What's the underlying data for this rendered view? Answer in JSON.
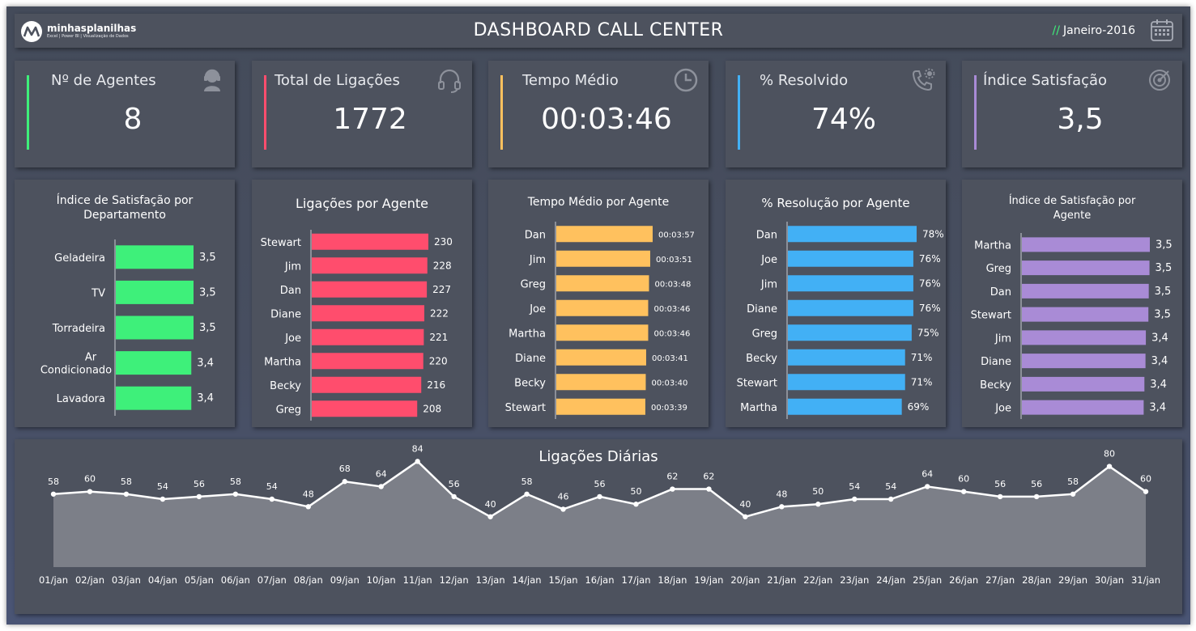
{
  "header": {
    "logo_name": "minhasplanilhas",
    "logo_tagline": "Excel | Power BI | Visualização de Dados",
    "title": "DASHBOARD CALL CENTER",
    "period_prefix": "//",
    "period": "Janeiro-2016",
    "calendar_icon": "calendar-icon"
  },
  "kpis": [
    {
      "label": "Nº de Agentes",
      "value": "8",
      "color": "#3ef07a",
      "icon": "headset-agent-icon"
    },
    {
      "label": "Total de Ligações",
      "value": "1772",
      "color": "#ff4d6d",
      "icon": "headphones-icon"
    },
    {
      "label": "Tempo Médio",
      "value": "00:03:46",
      "color": "#ffc15e",
      "icon": "clock-icon"
    },
    {
      "label": "% Resolvido",
      "value": "74%",
      "color": "#42b0f5",
      "icon": "phone-settings-icon"
    },
    {
      "label": "Índice Satisfação",
      "value": "3,5",
      "color": "#a98bd6",
      "icon": "target-icon"
    }
  ],
  "colors": {
    "green": "#3ef07a",
    "pink": "#ff4d6d",
    "orange": "#ffc15e",
    "blue": "#42b0f5",
    "purple": "#a98bd6",
    "panel": "#4d525e",
    "area_fill": "#7c7f88"
  },
  "chart_data": [
    {
      "type": "bar",
      "title": "Índice de Satisfação por Departamento",
      "categories": [
        "Geladeira",
        "TV",
        "Torradeira",
        "Ar Condicionado",
        "Lavadora"
      ],
      "values": [
        3.5,
        3.5,
        3.5,
        3.4,
        3.4
      ],
      "labels": [
        "3,5",
        "3,5",
        "3,5",
        "3,4",
        "3,4"
      ],
      "orientation": "horizontal",
      "color": "#3ef07a"
    },
    {
      "type": "bar",
      "title": "Ligações por Agente",
      "categories": [
        "Stewart",
        "Jim",
        "Dan",
        "Diane",
        "Joe",
        "Martha",
        "Becky",
        "Greg"
      ],
      "values": [
        230,
        228,
        227,
        222,
        221,
        220,
        216,
        208
      ],
      "labels": [
        "230",
        "228",
        "227",
        "222",
        "221",
        "220",
        "216",
        "208"
      ],
      "orientation": "horizontal",
      "color": "#ff4d6d"
    },
    {
      "type": "bar",
      "title": "Tempo Médio por Agente",
      "categories": [
        "Dan",
        "Jim",
        "Greg",
        "Joe",
        "Martha",
        "Diane",
        "Becky",
        "Stewart"
      ],
      "values": [
        237,
        231,
        228,
        226,
        226,
        221,
        220,
        219
      ],
      "labels": [
        "00:03:57",
        "00:03:51",
        "00:03:48",
        "00:03:46",
        "00:03:46",
        "00:03:41",
        "00:03:40",
        "00:03:39"
      ],
      "orientation": "horizontal",
      "color": "#ffc15e"
    },
    {
      "type": "bar",
      "title": "% Resolução por Agente",
      "categories": [
        "Dan",
        "Joe",
        "Jim",
        "Diane",
        "Greg",
        "Becky",
        "Stewart",
        "Martha"
      ],
      "values": [
        78,
        76,
        76,
        76,
        75,
        71,
        71,
        69
      ],
      "labels": [
        "78%",
        "76%",
        "76%",
        "76%",
        "75%",
        "71%",
        "71%",
        "69%"
      ],
      "orientation": "horizontal",
      "color": "#42b0f5"
    },
    {
      "type": "bar",
      "title": "Índice de Satisfação por Agente",
      "categories": [
        "Martha",
        "Greg",
        "Dan",
        "Stewart",
        "Jim",
        "Diane",
        "Becky",
        "Joe"
      ],
      "values": [
        3.53,
        3.52,
        3.5,
        3.49,
        3.42,
        3.41,
        3.38,
        3.36
      ],
      "labels": [
        "3,5",
        "3,5",
        "3,5",
        "3,5",
        "3,4",
        "3,4",
        "3,4",
        "3,4"
      ],
      "orientation": "horizontal",
      "color": "#a98bd6"
    },
    {
      "type": "area",
      "title": "Ligações Diárias",
      "categories": [
        "01/jan",
        "02/jan",
        "03/jan",
        "04/jan",
        "05/jan",
        "06/jan",
        "07/jan",
        "08/jan",
        "09/jan",
        "10/jan",
        "11/jan",
        "12/jan",
        "13/jan",
        "14/jan",
        "15/jan",
        "16/jan",
        "17/jan",
        "18/jan",
        "19/jan",
        "20/jan",
        "21/jan",
        "22/jan",
        "23/jan",
        "24/jan",
        "25/jan",
        "26/jan",
        "27/jan",
        "28/jan",
        "29/jan",
        "30/jan",
        "31/jan"
      ],
      "values": [
        58,
        60,
        58,
        54,
        56,
        58,
        54,
        48,
        68,
        64,
        84,
        56,
        40,
        58,
        46,
        56,
        50,
        62,
        62,
        40,
        48,
        50,
        54,
        54,
        64,
        60,
        56,
        56,
        58,
        80,
        60
      ],
      "ylim": [
        0,
        90
      ],
      "color": "#ffffff"
    }
  ]
}
